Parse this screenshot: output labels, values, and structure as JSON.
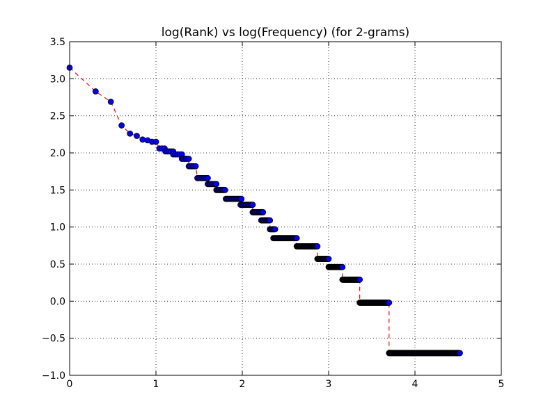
{
  "chart_data": {
    "type": "scatter",
    "title": "log(Rank) vs log(Frequency) (for 2-grams)",
    "xlabel": "",
    "ylabel": "",
    "xlim": [
      0,
      5
    ],
    "ylim": [
      -1.0,
      3.5
    ],
    "x_ticks": [
      0,
      1,
      2,
      3,
      4,
      5
    ],
    "x_tick_labels": [
      "0",
      "1",
      "2",
      "3",
      "4",
      "5"
    ],
    "y_ticks": [
      -1.0,
      -0.5,
      0.0,
      0.5,
      1.0,
      1.5,
      2.0,
      2.5,
      3.0,
      3.5
    ],
    "y_tick_labels": [
      "−1.0",
      "−0.5",
      "0.0",
      "0.5",
      "1.0",
      "1.5",
      "2.0",
      "2.5",
      "3.0",
      "3.5"
    ],
    "grid": true,
    "legend": "none",
    "series": [
      {
        "marker_color": "#0000ff",
        "marker_edge_color": "#000000",
        "line_color": "#ff0000",
        "line_style": "dashed",
        "segments": [
          {
            "x_start": 0.0,
            "x_end": 0.0,
            "y": 3.15,
            "count": 1
          },
          {
            "x_start": 0.301,
            "x_end": 0.301,
            "y": 2.83,
            "count": 1
          },
          {
            "x_start": 0.477,
            "x_end": 0.477,
            "y": 2.69,
            "count": 1
          },
          {
            "x_start": 0.602,
            "x_end": 0.602,
            "y": 2.37,
            "count": 1
          },
          {
            "x_start": 0.699,
            "x_end": 0.699,
            "y": 2.26,
            "count": 1
          },
          {
            "x_start": 0.778,
            "x_end": 0.778,
            "y": 2.23,
            "count": 1
          },
          {
            "x_start": 0.845,
            "x_end": 0.845,
            "y": 2.18,
            "count": 1
          },
          {
            "x_start": 0.903,
            "x_end": 0.903,
            "y": 2.17,
            "count": 1
          },
          {
            "x_start": 0.954,
            "x_end": 0.954,
            "y": 2.15,
            "count": 1
          },
          {
            "x_start": 1.0,
            "x_end": 1.0,
            "y": 2.15,
            "count": 1
          },
          {
            "x_start": 1.04,
            "x_end": 1.1,
            "y": 2.06,
            "count": 3
          },
          {
            "x_start": 1.11,
            "x_end": 1.2,
            "y": 2.02,
            "count": 5
          },
          {
            "x_start": 1.2,
            "x_end": 1.3,
            "y": 1.98,
            "count": 5
          },
          {
            "x_start": 1.3,
            "x_end": 1.38,
            "y": 1.92,
            "count": 6
          },
          {
            "x_start": 1.38,
            "x_end": 1.46,
            "y": 1.82,
            "count": 6
          },
          {
            "x_start": 1.48,
            "x_end": 1.6,
            "y": 1.66,
            "count": 10
          },
          {
            "x_start": 1.6,
            "x_end": 1.7,
            "y": 1.58,
            "count": 10
          },
          {
            "x_start": 1.7,
            "x_end": 1.8,
            "y": 1.5,
            "count": 12
          },
          {
            "x_start": 1.81,
            "x_end": 1.99,
            "y": 1.38,
            "count": 18
          },
          {
            "x_start": 1.98,
            "x_end": 2.12,
            "y": 1.3,
            "count": 14
          },
          {
            "x_start": 2.12,
            "x_end": 2.24,
            "y": 1.2,
            "count": 14
          },
          {
            "x_start": 2.22,
            "x_end": 2.32,
            "y": 1.09,
            "count": 12
          },
          {
            "x_start": 2.32,
            "x_end": 2.38,
            "y": 0.97,
            "count": 8
          },
          {
            "x_start": 2.36,
            "x_end": 2.63,
            "y": 0.85,
            "count": 40
          },
          {
            "x_start": 2.63,
            "x_end": 2.87,
            "y": 0.74,
            "count": 50
          },
          {
            "x_start": 2.87,
            "x_end": 3.0,
            "y": 0.57,
            "count": 30
          },
          {
            "x_start": 3.0,
            "x_end": 3.16,
            "y": 0.46,
            "count": 40
          },
          {
            "x_start": 3.16,
            "x_end": 3.36,
            "y": 0.29,
            "count": 50
          },
          {
            "x_start": 3.36,
            "x_end": 3.7,
            "y": -0.02,
            "count": 70
          },
          {
            "x_start": 3.7,
            "x_end": 4.52,
            "y": -0.7,
            "count": 150
          }
        ]
      }
    ]
  }
}
